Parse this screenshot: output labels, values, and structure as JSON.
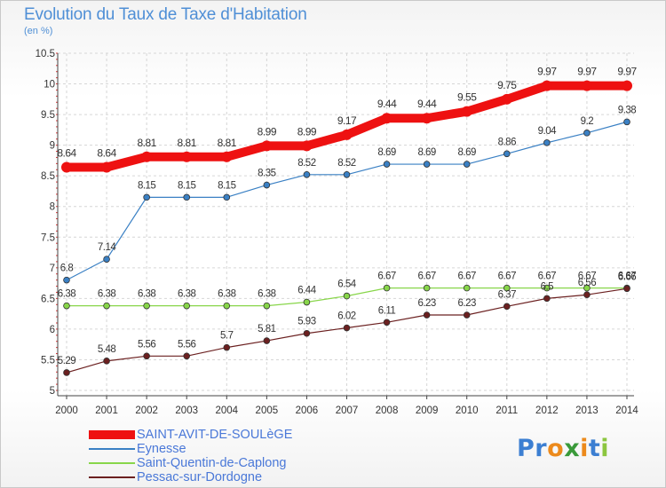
{
  "title": "Evolution du Taux de Taxe d'Habitation",
  "subtitle": "(en %)",
  "chart_data": {
    "type": "line",
    "title": "Evolution du Taux de Taxe d'Habitation",
    "ylabel": "(en %)",
    "xlabel": "",
    "ylim": [
      5,
      10.5
    ],
    "yticks": [
      "5",
      "5.5",
      "6",
      "6.5",
      "7",
      "7.5",
      "8",
      "8.5",
      "9",
      "9.5",
      "10",
      "10.5"
    ],
    "categories": [
      "2000",
      "2001",
      "2002",
      "2003",
      "2004",
      "2005",
      "2006",
      "2007",
      "2008",
      "2009",
      "2010",
      "2011",
      "2012",
      "2013",
      "2014"
    ],
    "grid": true,
    "legend": "bottom-left",
    "series": [
      {
        "name": "SAINT-AVIT-DE-SOULèGE",
        "color": "#ee1111",
        "values": [
          8.64,
          8.64,
          8.81,
          8.81,
          8.81,
          8.99,
          8.99,
          9.17,
          9.44,
          9.44,
          9.55,
          9.75,
          9.97,
          9.97,
          9.97
        ]
      },
      {
        "name": "Eynesse",
        "color": "#3a80c4",
        "values": [
          6.8,
          7.14,
          8.15,
          8.15,
          8.15,
          8.35,
          8.52,
          8.52,
          8.69,
          8.69,
          8.69,
          8.86,
          9.04,
          9.2,
          9.38
        ]
      },
      {
        "name": "Saint-Quentin-de-Caplong",
        "color": "#88d64a",
        "values": [
          6.38,
          6.38,
          6.38,
          6.38,
          6.38,
          6.38,
          6.44,
          6.54,
          6.67,
          6.67,
          6.67,
          6.67,
          6.67,
          6.67,
          6.67
        ]
      },
      {
        "name": "Pessac-sur-Dordogne",
        "color": "#6b2020",
        "values": [
          5.29,
          5.48,
          5.56,
          5.56,
          5.7,
          5.81,
          5.93,
          6.02,
          6.11,
          6.23,
          6.23,
          6.37,
          6.5,
          6.56,
          6.66
        ]
      }
    ]
  },
  "logo": {
    "text": "Proxiti",
    "colors": [
      "#3c7fd2",
      "#3c7fd2",
      "#ec8a1c",
      "#3a9a3a",
      "#ec8a1c",
      "#3c7fd2",
      "#8cc63f"
    ]
  }
}
